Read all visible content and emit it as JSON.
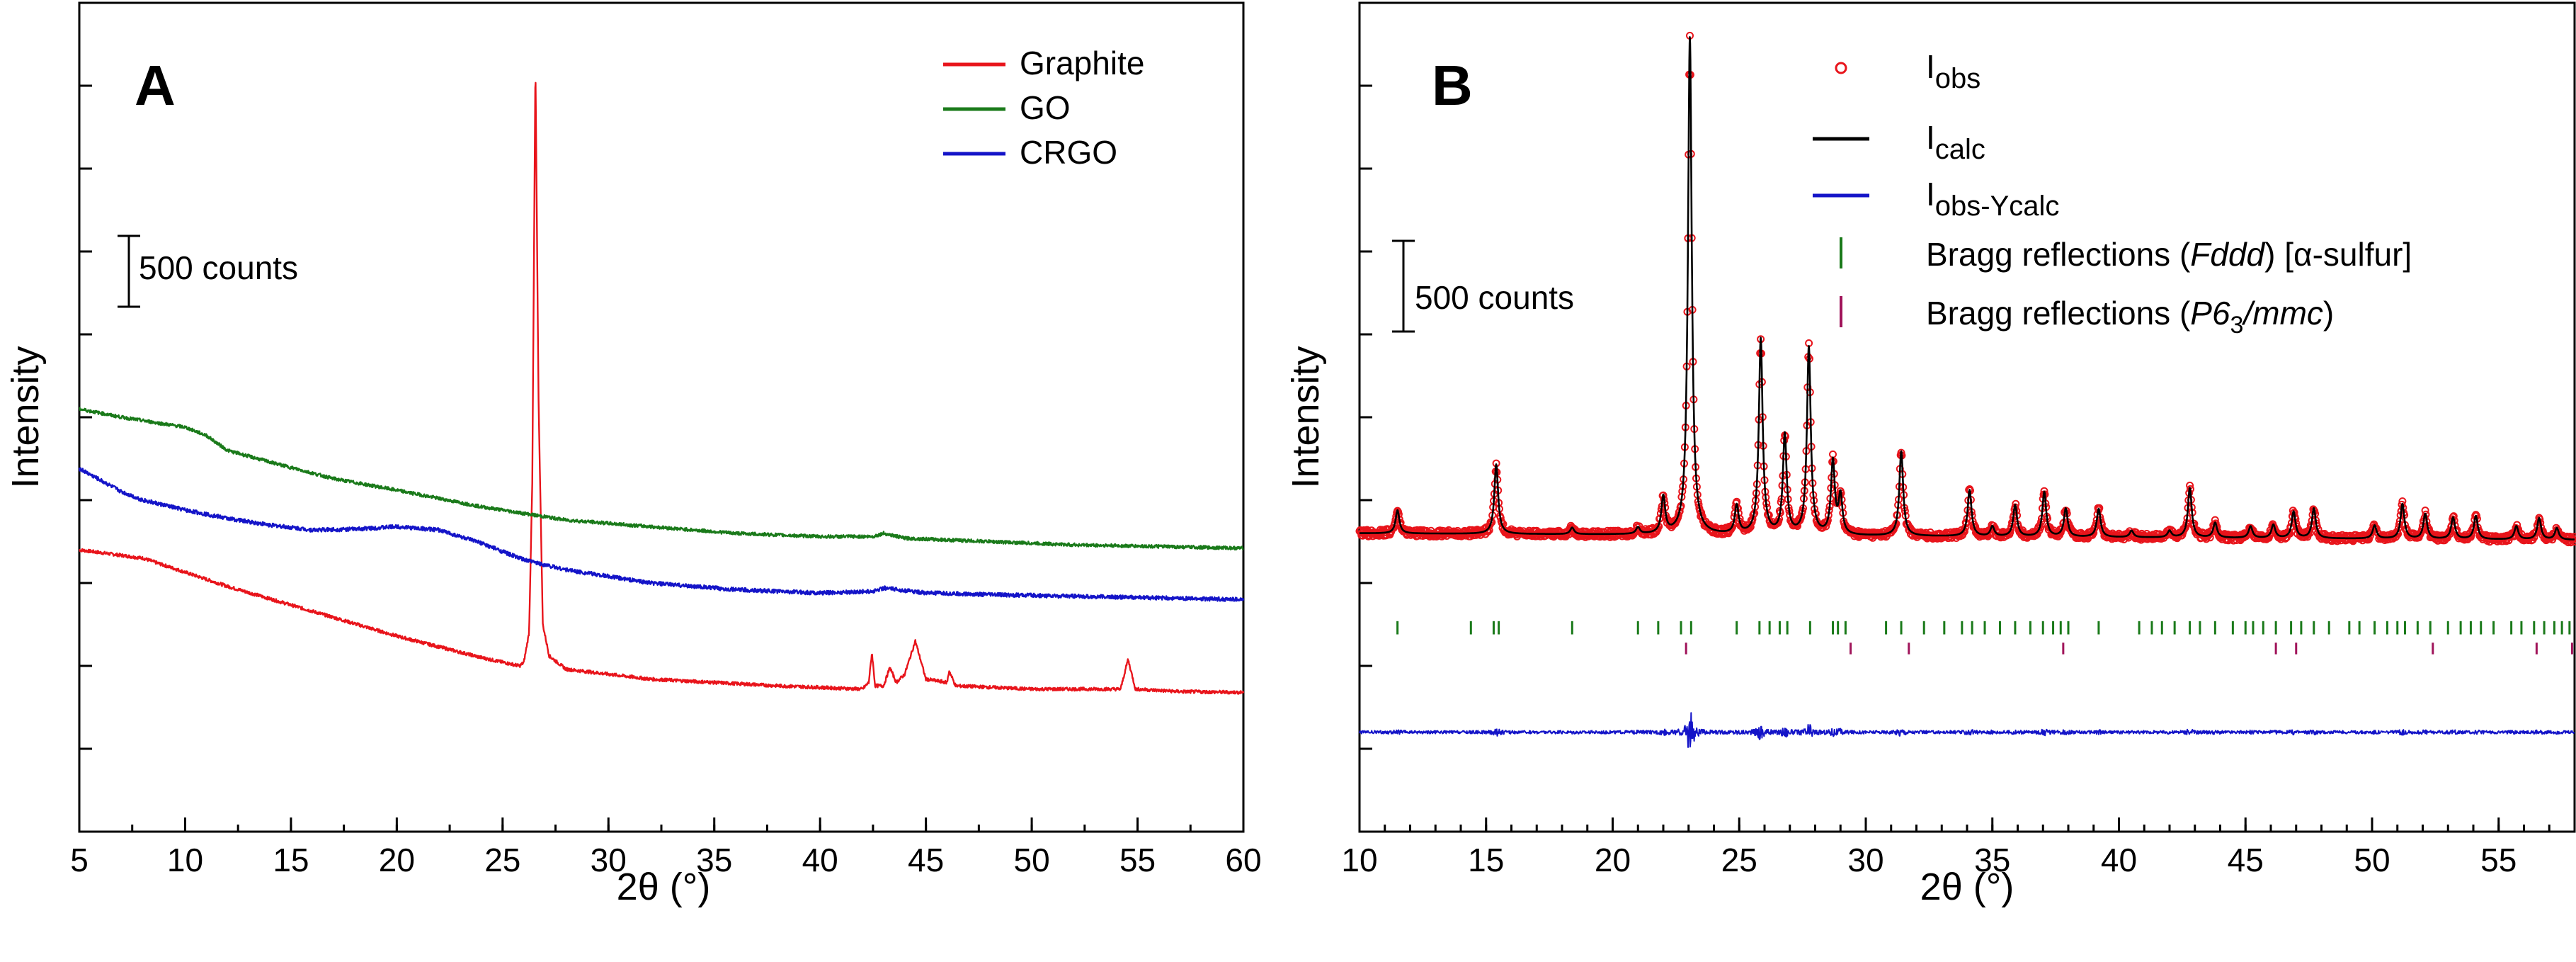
{
  "chart_data": [
    {
      "panel": "A",
      "type": "line",
      "xlabel": "2θ (°)",
      "ylabel": "Intensity",
      "xlim": [
        5,
        60
      ],
      "xticks": [
        5,
        10,
        15,
        20,
        25,
        30,
        35,
        40,
        45,
        50,
        55,
        60
      ],
      "ylim": [
        0,
        5000
      ],
      "scale_bar": {
        "label": "500 counts",
        "value": 500
      },
      "legend": [
        "Graphite",
        "GO",
        "CRGO"
      ],
      "series": [
        {
          "name": "Graphite",
          "color": "#e8141b",
          "noise": 10,
          "points": [
            [
              5,
              1700
            ],
            [
              8,
              1650
            ],
            [
              12,
              1480
            ],
            [
              16,
              1330
            ],
            [
              20,
              1180
            ],
            [
              24,
              1050
            ],
            [
              25.8,
              1000
            ],
            [
              26,
              1020
            ],
            [
              26.25,
              1200
            ],
            [
              26.4,
              2100
            ],
            [
              26.55,
              4650
            ],
            [
              26.7,
              2600
            ],
            [
              26.9,
              1250
            ],
            [
              27.2,
              1060
            ],
            [
              28,
              980
            ],
            [
              32,
              920
            ],
            [
              38,
              880
            ],
            [
              42,
              860
            ],
            [
              42.3,
              900
            ],
            [
              42.45,
              1080
            ],
            [
              42.6,
              880
            ],
            [
              43,
              880
            ],
            [
              43.3,
              990
            ],
            [
              43.6,
              900
            ],
            [
              44,
              950
            ],
            [
              44.5,
              1150
            ],
            [
              45,
              920
            ],
            [
              46,
              900
            ],
            [
              46.1,
              970
            ],
            [
              46.4,
              880
            ],
            [
              50,
              860
            ],
            [
              54.2,
              860
            ],
            [
              54.55,
              1040
            ],
            [
              54.9,
              860
            ],
            [
              57,
              845
            ],
            [
              60,
              840
            ]
          ]
        },
        {
          "name": "GO",
          "color": "#1a7a1a",
          "noise": 10,
          "points": [
            [
              5,
              2550
            ],
            [
              7,
              2500
            ],
            [
              9,
              2460
            ],
            [
              10,
              2440
            ],
            [
              11,
              2390
            ],
            [
              12,
              2300
            ],
            [
              14,
              2230
            ],
            [
              17,
              2130
            ],
            [
              20,
              2060
            ],
            [
              24,
              1960
            ],
            [
              28,
              1880
            ],
            [
              32,
              1840
            ],
            [
              36,
              1800
            ],
            [
              40,
              1780
            ],
            [
              42.5,
              1780
            ],
            [
              43,
              1800
            ],
            [
              44,
              1770
            ],
            [
              48,
              1750
            ],
            [
              52,
              1730
            ],
            [
              56,
              1720
            ],
            [
              60,
              1710
            ]
          ]
        },
        {
          "name": "CRGO",
          "color": "#1414c8",
          "noise": 12,
          "points": [
            [
              5,
              2190
            ],
            [
              6,
              2120
            ],
            [
              7,
              2050
            ],
            [
              8,
              2000
            ],
            [
              10,
              1940
            ],
            [
              12,
              1890
            ],
            [
              14,
              1850
            ],
            [
              16,
              1820
            ],
            [
              18,
              1825
            ],
            [
              20,
              1840
            ],
            [
              22,
              1820
            ],
            [
              24,
              1740
            ],
            [
              26,
              1640
            ],
            [
              28,
              1580
            ],
            [
              32,
              1500
            ],
            [
              36,
              1460
            ],
            [
              40,
              1440
            ],
            [
              42.5,
              1450
            ],
            [
              43,
              1470
            ],
            [
              45,
              1440
            ],
            [
              48,
              1430
            ],
            [
              52,
              1420
            ],
            [
              56,
              1410
            ],
            [
              60,
              1400
            ]
          ]
        }
      ]
    },
    {
      "panel": "B",
      "type": "line",
      "xlabel": "2θ (°)",
      "ylabel": "Intensity",
      "xlim": [
        10,
        58
      ],
      "xticks": [
        10,
        15,
        20,
        25,
        30,
        35,
        40,
        45,
        50,
        55
      ],
      "ylim": [
        0,
        5000
      ],
      "scale_bar": {
        "label": "500 counts",
        "value": 500
      },
      "legend": [
        {
          "symbol": "circle",
          "text": "I",
          "sub": "obs",
          "after": "",
          "color": "#e8141b"
        },
        {
          "symbol": "line",
          "text": "I",
          "sub": "calc",
          "after": "",
          "color": "#000000"
        },
        {
          "symbol": "line",
          "text": "I",
          "sub": "obs-Ycalc",
          "after": "",
          "color": "#1414c8"
        },
        {
          "symbol": "bar",
          "text": "Bragg reflections (",
          "italic": "Fddd",
          "after": ") [α-sulfur]",
          "color": "#1a7a1a"
        },
        {
          "symbol": "bar",
          "text": "Bragg reflections (",
          "italic": "P6",
          "isub": "3",
          "italic2": "/mmc",
          "after": ")",
          "color": "#a0145a"
        }
      ],
      "baseline": 1800,
      "peaks": [
        [
          11.5,
          140
        ],
        [
          15.4,
          420
        ],
        [
          18.4,
          40
        ],
        [
          21,
          40
        ],
        [
          22,
          220
        ],
        [
          23.05,
          3000
        ],
        [
          24.9,
          170
        ],
        [
          25.85,
          1180
        ],
        [
          26.8,
          600
        ],
        [
          27.75,
          1130
        ],
        [
          28.7,
          440
        ],
        [
          29,
          230
        ],
        [
          31.4,
          510
        ],
        [
          34.1,
          280
        ],
        [
          35,
          60
        ],
        [
          35.9,
          190
        ],
        [
          37.05,
          270
        ],
        [
          37.9,
          170
        ],
        [
          39.2,
          170
        ],
        [
          40.5,
          40
        ],
        [
          42,
          40
        ],
        [
          42.8,
          300
        ],
        [
          43.8,
          90
        ],
        [
          45.2,
          70
        ],
        [
          46.1,
          80
        ],
        [
          46.9,
          160
        ],
        [
          47.7,
          180
        ],
        [
          50.1,
          80
        ],
        [
          51.2,
          210
        ],
        [
          52.1,
          150
        ],
        [
          53.2,
          130
        ],
        [
          54.1,
          140
        ],
        [
          55.7,
          80
        ],
        [
          56.6,
          130
        ],
        [
          57.3,
          70
        ]
      ],
      "bragg_fddd": [
        11.5,
        14.4,
        15.3,
        15.5,
        18.4,
        21.0,
        21.8,
        22.7,
        23.1,
        24.9,
        25.8,
        26.2,
        26.6,
        26.9,
        27.8,
        28.7,
        28.9,
        29.2,
        30.8,
        31.4,
        32.3,
        33.1,
        33.8,
        34.2,
        34.7,
        35.3,
        35.9,
        36.5,
        37.0,
        37.4,
        37.7,
        38.0,
        39.2,
        40.8,
        41.3,
        41.7,
        42.2,
        42.8,
        43.2,
        43.8,
        44.5,
        45.0,
        45.3,
        45.7,
        46.2,
        46.8,
        47.2,
        47.7,
        48.3,
        49.1,
        49.5,
        50.1,
        50.6,
        51.0,
        51.3,
        51.8,
        52.3,
        53.0,
        53.5,
        53.9,
        54.3,
        54.8,
        55.5,
        55.9,
        56.4,
        56.8,
        57.2,
        57.5,
        57.8
      ],
      "bragg_p63mmc": [
        22.9,
        29.4,
        31.7,
        37.8,
        46.2,
        47.0,
        52.4,
        56.5,
        57.9
      ],
      "diff_level": 600,
      "colors": {
        "obs": "#e8141b",
        "calc": "#000000",
        "diff": "#1414c8",
        "fddd": "#1a7a1a",
        "p63": "#a0145a"
      }
    }
  ]
}
